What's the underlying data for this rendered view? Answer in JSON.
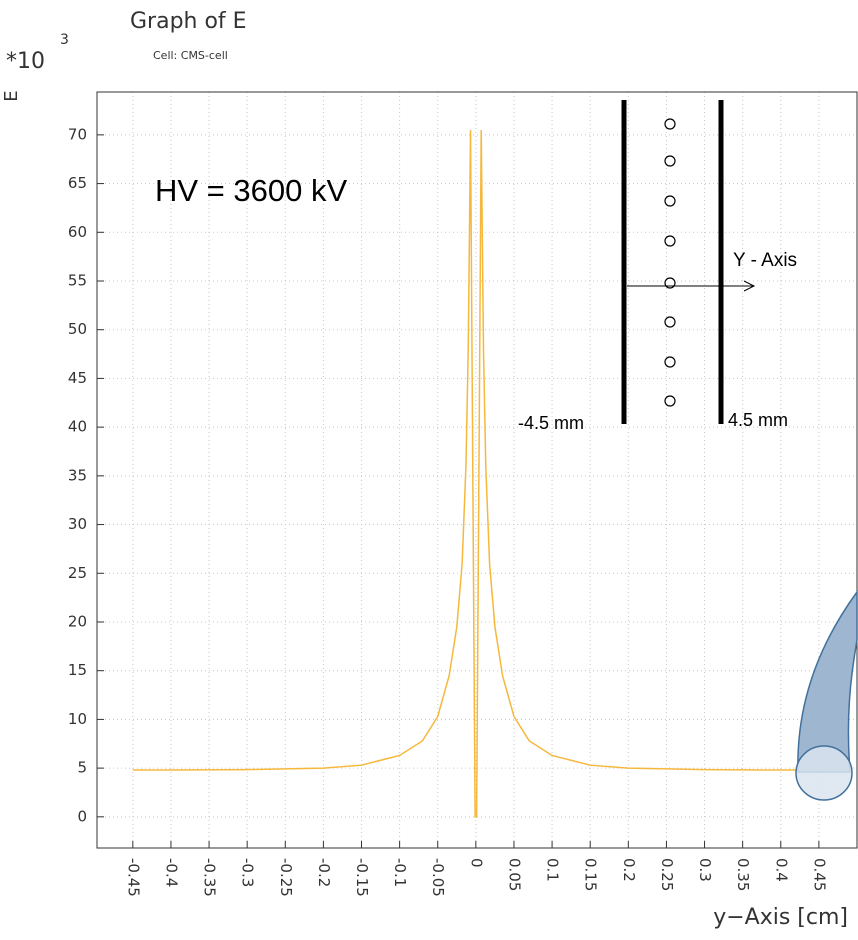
{
  "chart_data": {
    "type": "line",
    "title": "Graph of E",
    "subtitle": "Cell: CMS-cell",
    "y_multiplier": "*10",
    "y_multiplier_exp": "3",
    "ylabel": "E",
    "xlabel": "y−Axis [cm]",
    "annotations": [
      "HV = 3600 kV",
      "Y - Axis",
      "-4.5 mm",
      "4.5 mm"
    ],
    "x": [
      -0.45,
      -0.4,
      -0.3,
      -0.2,
      -0.15,
      -0.1,
      -0.07,
      -0.05,
      -0.035,
      -0.025,
      -0.018,
      -0.013,
      -0.01,
      -0.007,
      -0.001,
      0.001,
      0.007,
      0.01,
      0.013,
      0.018,
      0.025,
      0.035,
      0.05,
      0.07,
      0.1,
      0.15,
      0.2,
      0.3,
      0.4,
      0.45
    ],
    "series": [
      {
        "name": "E",
        "color": "#f5b83c",
        "values": [
          4.8,
          4.8,
          4.85,
          5.0,
          5.3,
          6.3,
          7.8,
          10.3,
          14.5,
          19.5,
          26,
          36,
          48,
          70.5,
          0,
          0,
          70.5,
          48,
          36,
          26,
          19.5,
          14.5,
          10.3,
          7.8,
          6.3,
          5.3,
          5.0,
          4.85,
          4.8,
          4.8
        ]
      }
    ],
    "xlim": [
      -0.497,
      0.5
    ],
    "ylim": [
      -3.2,
      74.4
    ],
    "xticks": [
      -0.45,
      -0.4,
      -0.35,
      -0.3,
      -0.25,
      -0.2,
      -0.15,
      -0.1,
      -0.05,
      0,
      0.05,
      0.1,
      0.15,
      0.2,
      0.25,
      0.3,
      0.35,
      0.4,
      0.45
    ],
    "yticks": [
      0,
      5,
      10,
      15,
      20,
      25,
      30,
      35,
      40,
      45,
      50,
      55,
      60,
      65,
      70
    ],
    "grid": true
  }
}
